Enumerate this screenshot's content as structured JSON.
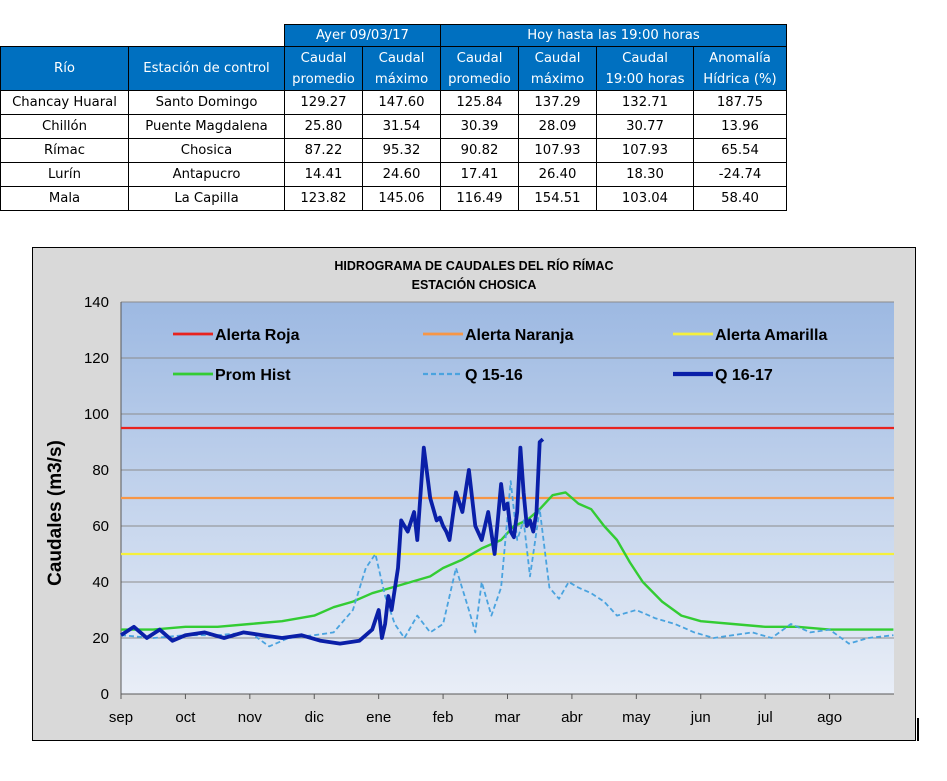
{
  "table": {
    "group_headers": [
      "Ayer 09/03/17",
      "Hoy hasta las 19:00 horas"
    ],
    "col_headers": [
      [
        "Río"
      ],
      [
        "Estación de control"
      ],
      [
        "Caudal",
        "promedio"
      ],
      [
        "Caudal",
        "máximo"
      ],
      [
        "Caudal",
        "promedio"
      ],
      [
        "Caudal",
        "máximo"
      ],
      [
        "Caudal",
        "19:00 horas"
      ],
      [
        "Anomalía",
        "Hídrica (%)"
      ]
    ],
    "rows": [
      [
        "Chancay Huaral",
        "Santo Domingo",
        "129.27",
        "147.60",
        "125.84",
        "137.29",
        "132.71",
        "187.75"
      ],
      [
        "Chillón",
        "Puente Magdalena",
        "25.80",
        "31.54",
        "30.39",
        "28.09",
        "30.77",
        "13.96"
      ],
      [
        "Rímac",
        "Chosica",
        "87.22",
        "95.32",
        "90.82",
        "107.93",
        "107.93",
        "65.54"
      ],
      [
        "Lurín",
        "Antapucro",
        "14.41",
        "24.60",
        "17.41",
        "26.40",
        "18.30",
        "-24.74"
      ],
      [
        "Mala",
        "La Capilla",
        "123.82",
        "145.06",
        "116.49",
        "154.51",
        "103.04",
        "58.40"
      ]
    ],
    "header_color": "#0070c0"
  },
  "chart_data": {
    "type": "line",
    "title": "HIDROGRAMA DE CAUDALES  DEL RÍO RÍMAC",
    "subtitle": "ESTACIÓN CHOSICA",
    "ylabel": "Caudales (m3/s)",
    "xlabel": "",
    "ylim": [
      0,
      140
    ],
    "yticks": [
      "0",
      "20",
      "40",
      "60",
      "80",
      "100",
      "120",
      "140"
    ],
    "categories": [
      "sep",
      "oct",
      "nov",
      "dic",
      "ene",
      "feb",
      "mar",
      "abr",
      "may",
      "jun",
      "jul",
      "ago"
    ],
    "x_range_months": [
      0,
      12
    ],
    "grid": true,
    "legend_placement": "top-inside",
    "thresholds": [
      {
        "name": "Alerta Roja",
        "value": 95,
        "color": "#e8231f"
      },
      {
        "name": "Alerta Naranja",
        "value": 70,
        "color": "#f79646"
      },
      {
        "name": "Alerta Amarilla",
        "value": 50,
        "color": "#f5f03c"
      }
    ],
    "series": [
      {
        "name": "Prom Hist",
        "color": "#33cc33",
        "style": "solid",
        "x": [
          0,
          0.5,
          1,
          1.5,
          2,
          2.5,
          3,
          3.3,
          3.6,
          3.9,
          4.2,
          4.5,
          4.8,
          5,
          5.3,
          5.6,
          5.9,
          6.1,
          6.3,
          6.5,
          6.7,
          6.9,
          7.1,
          7.3,
          7.5,
          7.7,
          7.9,
          8.1,
          8.4,
          8.7,
          9,
          9.5,
          10,
          10.5,
          11,
          11.5,
          11.99
        ],
        "y": [
          23,
          23,
          24,
          24,
          25,
          26,
          28,
          31,
          33,
          36,
          38,
          40,
          42,
          45,
          48,
          52,
          55,
          60,
          62,
          66,
          71,
          72,
          68,
          66,
          60,
          55,
          47,
          40,
          33,
          28,
          26,
          25,
          24,
          24,
          23,
          23,
          23
        ]
      },
      {
        "name": "Q 15-16",
        "color": "#4aa3df",
        "style": "dashed",
        "x": [
          0,
          0.5,
          1,
          1.5,
          2,
          2.3,
          2.6,
          3,
          3.3,
          3.6,
          3.8,
          3.95,
          4.1,
          4.25,
          4.4,
          4.6,
          4.8,
          5,
          5.2,
          5.4,
          5.5,
          5.6,
          5.75,
          5.9,
          6.05,
          6.15,
          6.25,
          6.35,
          6.5,
          6.65,
          6.8,
          6.95,
          7.1,
          7.3,
          7.5,
          7.7,
          8.0,
          8.3,
          8.6,
          8.9,
          9.2,
          9.5,
          9.8,
          10.1,
          10.4,
          10.7,
          11,
          11.3,
          11.6,
          11.99
        ],
        "y": [
          21,
          20,
          21,
          21,
          22,
          17,
          20,
          21,
          22,
          30,
          45,
          50,
          35,
          25,
          20,
          28,
          22,
          25,
          45,
          30,
          22,
          40,
          28,
          38,
          76,
          55,
          62,
          42,
          66,
          38,
          34,
          40,
          38,
          36,
          33,
          28,
          30,
          27,
          25,
          22,
          20,
          21,
          22,
          20,
          25,
          22,
          23,
          18,
          20,
          21
        ]
      },
      {
        "name": "Q 16-17",
        "color": "#0a1fa8",
        "style": "thick",
        "x": [
          0,
          0.2,
          0.4,
          0.6,
          0.8,
          1,
          1.3,
          1.6,
          1.9,
          2.2,
          2.5,
          2.8,
          3.1,
          3.4,
          3.7,
          3.9,
          4,
          4.05,
          4.1,
          4.15,
          4.2,
          4.3,
          4.35,
          4.45,
          4.55,
          4.6,
          4.7,
          4.8,
          4.9,
          4.95,
          5,
          5.05,
          5.1,
          5.2,
          5.3,
          5.4,
          5.5,
          5.6,
          5.7,
          5.8,
          5.85,
          5.9,
          5.95,
          6,
          6.05,
          6.1,
          6.15,
          6.2,
          6.25,
          6.3,
          6.35,
          6.4,
          6.45,
          6.5,
          6.55
        ],
        "y": [
          21,
          24,
          20,
          23,
          19,
          21,
          22,
          20,
          22,
          21,
          20,
          21,
          19,
          18,
          19,
          23,
          30,
          20,
          25,
          35,
          30,
          45,
          62,
          58,
          65,
          55,
          88,
          70,
          62,
          63,
          60,
          58,
          55,
          72,
          65,
          80,
          60,
          55,
          65,
          50,
          62,
          75,
          66,
          68,
          58,
          56,
          65,
          88,
          72,
          60,
          62,
          58,
          65,
          90,
          91
        ]
      }
    ]
  }
}
